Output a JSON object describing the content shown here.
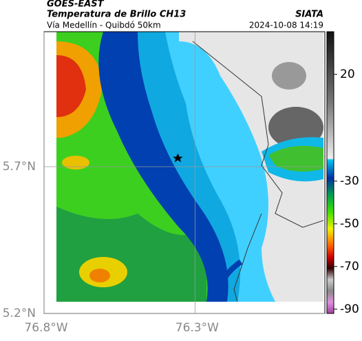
{
  "header": {
    "source": "GOES-EAST",
    "title": "Temperatura de Brillo CH13",
    "org": "SIATA",
    "subtitle": "Vía Medellín - Quibdó 50km",
    "datetime": "2024-10-08 14:19"
  },
  "map": {
    "xlim": [
      -76.8,
      -75.87
    ],
    "ylim": [
      5.2,
      6.16
    ],
    "xticks": [
      {
        "value": -76.8,
        "label": "76.8°W"
      },
      {
        "value": -76.3,
        "label": "76.3°W"
      }
    ],
    "yticks": [
      {
        "value": 5.7,
        "label": "5.7°N"
      },
      {
        "value": 5.2,
        "label": "5.2°N"
      }
    ]
  },
  "colorbar": {
    "clim": [
      -92,
      40
    ],
    "ticks": [
      20,
      -30,
      -50,
      -70,
      -90
    ]
  }
}
